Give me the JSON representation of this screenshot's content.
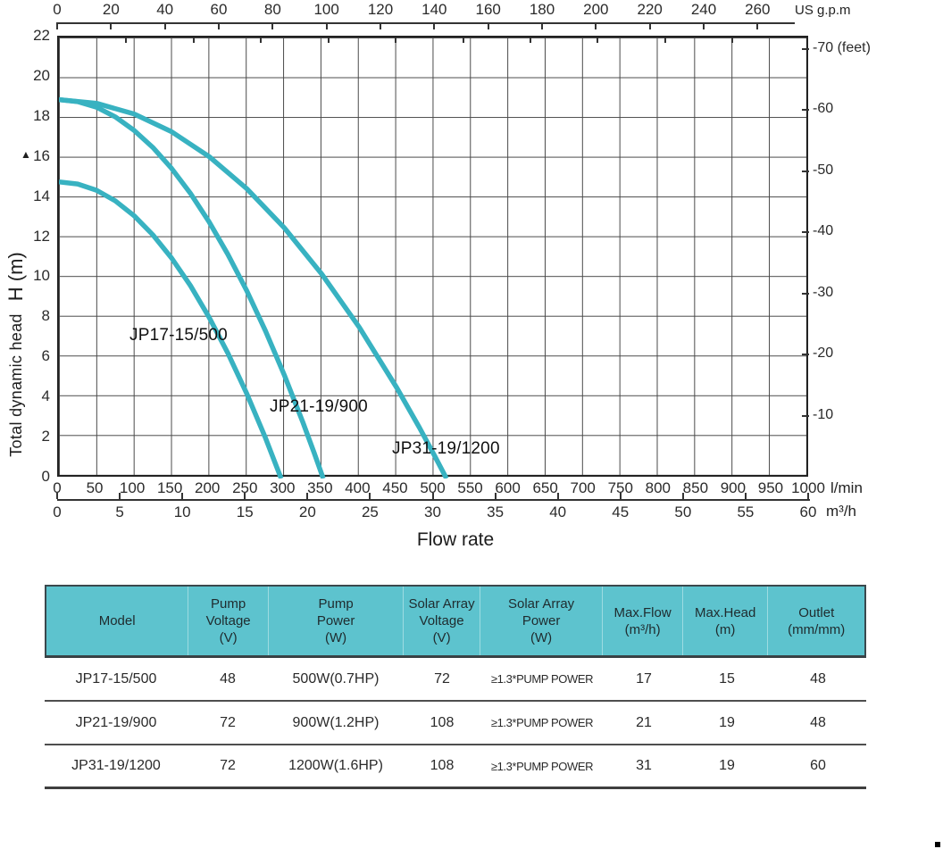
{
  "chart": {
    "y_axis_title": "Total dynamic head",
    "y_axis_symbol": "H (m)",
    "y_arrow": "▲",
    "x_label": "Flow rate",
    "top_axis": {
      "unit": "US g.p.m",
      "ticks": [
        0,
        20,
        40,
        60,
        80,
        100,
        120,
        140,
        160,
        180,
        200,
        220,
        240,
        260
      ]
    },
    "left_axis_ticks": [
      22,
      20,
      18,
      16,
      14,
      12,
      10,
      8,
      6,
      4,
      2,
      0
    ],
    "right_axis": {
      "unit": "feet",
      "ticks": [
        {
          "feet": 70,
          "label": "-70 (feet)"
        },
        {
          "feet": 60,
          "label": "-60"
        },
        {
          "feet": 50,
          "label": "-50"
        },
        {
          "feet": 40,
          "label": "-40"
        },
        {
          "feet": 30,
          "label": "-30"
        },
        {
          "feet": 20,
          "label": "-20"
        },
        {
          "feet": 10,
          "label": "-10"
        }
      ]
    },
    "bottom_axis_lmin": {
      "unit": "l/min",
      "ticks": [
        0,
        50,
        100,
        150,
        200,
        250,
        300,
        350,
        400,
        450,
        500,
        550,
        600,
        650,
        700,
        750,
        800,
        850,
        900,
        950,
        1000
      ]
    },
    "bottom_axis_m3h": {
      "unit": "m³/h",
      "ticks": [
        0,
        5,
        10,
        15,
        20,
        25,
        30,
        35,
        40,
        45,
        50,
        55,
        60
      ]
    }
  },
  "chart_data": {
    "type": "line",
    "title": "",
    "xlabel": "Flow rate",
    "ylabel": "Total dynamic head H (m)",
    "x_units": [
      "l/min",
      "m³/h",
      "US g.p.m"
    ],
    "xlim_lmin": [
      0,
      1000
    ],
    "xlim_m3h": [
      0,
      60
    ],
    "xlim_usgpm": [
      0,
      260
    ],
    "ylim_m": [
      0,
      22
    ],
    "ylim_feet": [
      0,
      70
    ],
    "grid": {
      "x_step_lmin": 50,
      "y_step_m": 2
    },
    "legend_position": "labels-on-curves",
    "series": [
      {
        "name": "JP17-15/500",
        "max_head_m": 14.8,
        "max_flow_lmin": 296,
        "points": [
          [
            0,
            14.8
          ],
          [
            25,
            14.69
          ],
          [
            50,
            14.38
          ],
          [
            75,
            13.85
          ],
          [
            100,
            13.11
          ],
          [
            125,
            12.16
          ],
          [
            150,
            11.0
          ],
          [
            175,
            9.63
          ],
          [
            200,
            8.04
          ],
          [
            225,
            6.25
          ],
          [
            250,
            4.24
          ],
          [
            275,
            2.02
          ],
          [
            290,
            0.57
          ],
          [
            296,
            0
          ]
        ]
      },
      {
        "name": "JP21-19/900",
        "max_head_m": 18.9,
        "max_flow_lmin": 352,
        "points": [
          [
            0,
            18.9
          ],
          [
            25,
            18.8
          ],
          [
            50,
            18.52
          ],
          [
            75,
            18.04
          ],
          [
            100,
            17.37
          ],
          [
            125,
            16.52
          ],
          [
            150,
            15.47
          ],
          [
            175,
            14.23
          ],
          [
            200,
            12.8
          ],
          [
            225,
            11.18
          ],
          [
            250,
            9.37
          ],
          [
            275,
            7.36
          ],
          [
            300,
            5.17
          ],
          [
            325,
            2.79
          ],
          [
            340,
            1.27
          ],
          [
            352,
            0
          ]
        ]
      },
      {
        "name": "JP31-19/1200",
        "max_head_m": 18.9,
        "max_flow_lmin": 516,
        "points": [
          [
            0,
            18.9
          ],
          [
            50,
            18.72
          ],
          [
            100,
            18.19
          ],
          [
            150,
            17.3
          ],
          [
            200,
            16.06
          ],
          [
            250,
            14.46
          ],
          [
            300,
            12.51
          ],
          [
            350,
            10.2
          ],
          [
            400,
            7.54
          ],
          [
            450,
            4.52
          ],
          [
            480,
            2.54
          ],
          [
            500,
            1.15
          ],
          [
            516,
            0
          ]
        ]
      }
    ]
  },
  "table": {
    "columns": [
      {
        "lines": [
          "Model"
        ]
      },
      {
        "lines": [
          "Pump",
          "Voltage",
          "(V)"
        ]
      },
      {
        "lines": [
          "Pump",
          "Power",
          "(W)"
        ]
      },
      {
        "lines": [
          "Solar Array",
          "Voltage",
          "(V)"
        ]
      },
      {
        "lines": [
          "Solar Array",
          "Power",
          "(W)"
        ]
      },
      {
        "lines": [
          "Max.Flow",
          "(m³/h)"
        ]
      },
      {
        "lines": [
          "Max.Head",
          "(m)"
        ]
      },
      {
        "lines": [
          "Outlet",
          "(mm/mm)"
        ]
      }
    ],
    "rows": [
      [
        "JP17-15/500",
        "48",
        "500W(0.7HP)",
        "72",
        "≥1.3*PUMP POWER",
        "17",
        "15",
        "48"
      ],
      [
        "JP21-19/900",
        "72",
        "900W(1.2HP)",
        "108",
        "≥1.3*PUMP POWER",
        "21",
        "19",
        "48"
      ],
      [
        "JP31-19/1200",
        "72",
        "1200W(1.6HP)",
        "108",
        "≥1.3*PUMP POWER",
        "31",
        "19",
        "60"
      ]
    ]
  },
  "colors": {
    "curve": "#38b2c1",
    "table_header": "#5dc3ce",
    "grid": "#4a4a4a",
    "axis": "#222222"
  }
}
